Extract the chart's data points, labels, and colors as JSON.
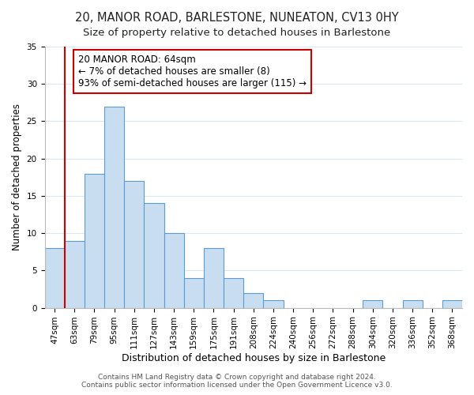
{
  "title": "20, MANOR ROAD, BARLESTONE, NUNEATON, CV13 0HY",
  "subtitle": "Size of property relative to detached houses in Barlestone",
  "xlabel": "Distribution of detached houses by size in Barlestone",
  "ylabel": "Number of detached properties",
  "bar_labels": [
    "47sqm",
    "63sqm",
    "79sqm",
    "95sqm",
    "111sqm",
    "127sqm",
    "143sqm",
    "159sqm",
    "175sqm",
    "191sqm",
    "208sqm",
    "224sqm",
    "240sqm",
    "256sqm",
    "272sqm",
    "288sqm",
    "304sqm",
    "320sqm",
    "336sqm",
    "352sqm",
    "368sqm"
  ],
  "bar_values": [
    8,
    9,
    18,
    27,
    17,
    14,
    10,
    4,
    8,
    4,
    2,
    1,
    0,
    0,
    0,
    0,
    1,
    0,
    1,
    0,
    1
  ],
  "bar_color": "#c9ddf0",
  "bar_edge_color": "#5b9bd5",
  "vline_x": 1,
  "vline_color": "#cc0000",
  "annotation_title": "20 MANOR ROAD: 64sqm",
  "annotation_line1": "← 7% of detached houses are smaller (8)",
  "annotation_line2": "93% of semi-detached houses are larger (115) →",
  "annotation_box_color": "#ffffff",
  "annotation_box_edge": "#cc0000",
  "ylim": [
    0,
    35
  ],
  "yticks": [
    0,
    5,
    10,
    15,
    20,
    25,
    30,
    35
  ],
  "footer_line1": "Contains HM Land Registry data © Crown copyright and database right 2024.",
  "footer_line2": "Contains public sector information licensed under the Open Government Licence v3.0.",
  "title_fontsize": 10.5,
  "subtitle_fontsize": 9.5,
  "xlabel_fontsize": 9,
  "ylabel_fontsize": 8.5,
  "tick_fontsize": 7.5,
  "footer_fontsize": 6.5,
  "annot_fontsize": 8.5
}
